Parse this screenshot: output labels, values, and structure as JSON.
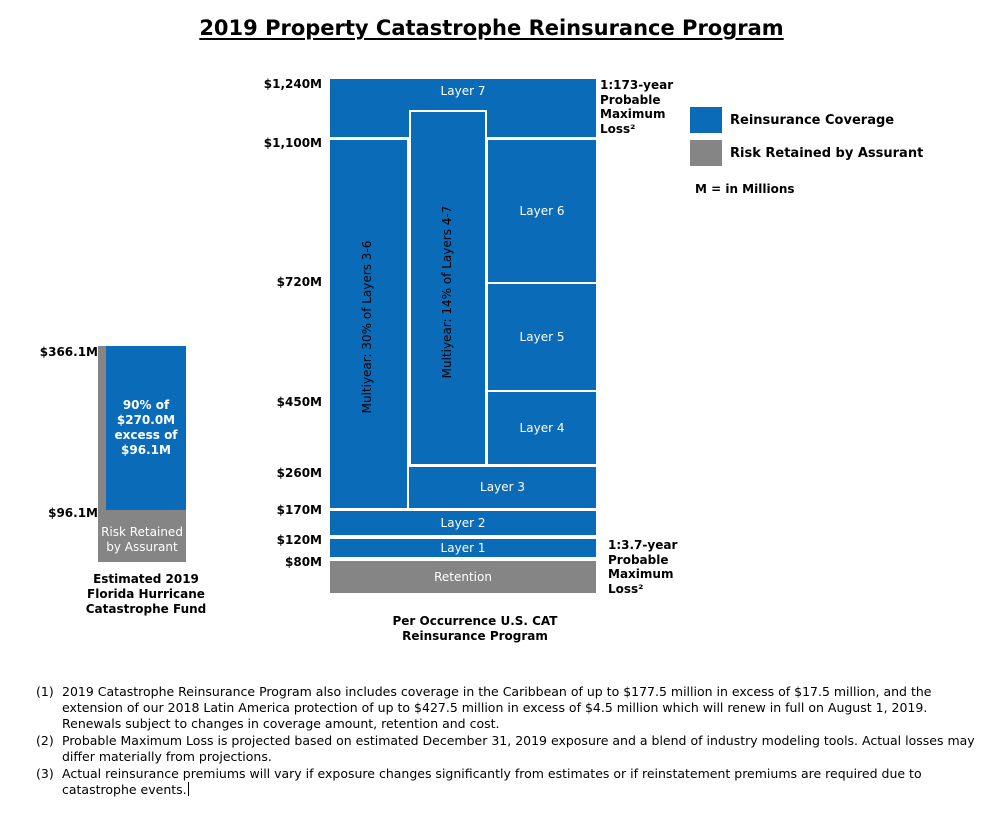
{
  "title": "2019 Property Catastrophe Reinsurance Program",
  "legend": {
    "items": [
      {
        "label": "Reinsurance Coverage",
        "color": "#0a6bb8"
      },
      {
        "label": "Risk Retained by Assurant",
        "color": "#858585"
      }
    ],
    "note": "M = in Millions"
  },
  "fhcf": {
    "top_label": "$366.1M",
    "bottom_label": "$96.1M",
    "coverage_lines": [
      "90% of",
      "$270.0M",
      "excess of",
      "$96.1M"
    ],
    "retained_lines": [
      "Risk Retained",
      "by Assurant"
    ],
    "caption_lines": [
      "Estimated 2019",
      "Florida Hurricane",
      "Catastrophe Fund"
    ]
  },
  "program": {
    "y_labels": [
      "$1,240M",
      "$1,100M",
      "$720M",
      "$450M",
      "$260M",
      "$170M",
      "$120M",
      "$80M"
    ],
    "layers": {
      "layer7": "Layer 7",
      "layer6": "Layer 6",
      "layer5": "Layer 5",
      "layer4": "Layer 4",
      "layer3": "Layer 3",
      "layer2": "Layer 2",
      "layer1": "Layer 1",
      "retention": "Retention"
    },
    "multiyear_30": "Multiyear: 30% of Layers 3-6",
    "multiyear_14": "Multiyear: 14% of Layers 4-7",
    "pml_top_lines": [
      "1:173-year",
      "Probable",
      "Maximum",
      "Loss²"
    ],
    "pml_bottom_lines": [
      "1:3.7-year",
      "Probable",
      "Maximum",
      "Loss²"
    ],
    "caption_lines": [
      "Per Occurrence U.S. CAT",
      "Reinsurance Program"
    ]
  },
  "footnotes": [
    {
      "num": "(1)",
      "text": "2019 Catastrophe Reinsurance Program also includes coverage in the Caribbean of up to $177.5 million in excess of $17.5 million, and the extension of our 2018 Latin America protection of up to $427.5 million in excess of $4.5 million which will renew in full on August 1, 2019. Renewals subject to changes in coverage amount, retention and cost."
    },
    {
      "num": "(2)",
      "text": "Probable Maximum Loss is projected based on estimated December 31, 2019 exposure and a blend of industry modeling tools. Actual losses may differ materially from projections."
    },
    {
      "num": "(3)",
      "text": "Actual reinsurance premiums will vary if exposure changes significantly from estimates or if reinstatement premiums are required due to catastrophe events."
    }
  ]
}
